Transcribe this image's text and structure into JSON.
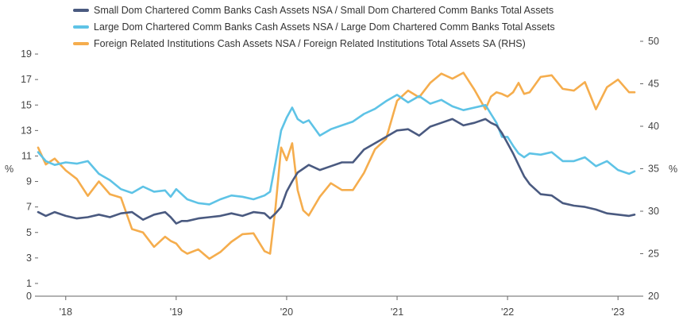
{
  "chart_data": {
    "type": "line",
    "legend": "top-left",
    "grid": false,
    "y_left": {
      "label": "%",
      "ylim": [
        0,
        20
      ],
      "ticks": [
        0,
        1,
        3,
        5,
        7,
        9,
        11,
        13,
        15,
        17,
        19
      ],
      "tick_labels": [
        "0",
        "1",
        "3",
        "5",
        "7",
        "9",
        "11",
        "13",
        "15",
        "17",
        "19"
      ]
    },
    "y_right": {
      "label": "%",
      "ylim": [
        20,
        50
      ],
      "ticks": [
        20,
        25,
        30,
        35,
        40,
        45,
        50
      ],
      "tick_labels": [
        "20",
        "25",
        "30",
        "35",
        "40",
        "45",
        "50"
      ]
    },
    "x_axis": {
      "range": [
        2017.75,
        2023.2
      ],
      "ticks": [
        2018,
        2019,
        2020,
        2021,
        2022,
        2023
      ],
      "tick_labels": [
        "'18",
        "'19",
        "'20",
        "'21",
        "'22",
        "'23"
      ]
    },
    "series": [
      {
        "name": "Small Dom Chartered Comm Banks Cash Assets NSA / Small Dom Chartered Comm Banks Total Assets",
        "axis": "left",
        "color": "#4a5a80",
        "x": [
          2017.75,
          2017.82,
          2017.9,
          2018.0,
          2018.1,
          2018.2,
          2018.3,
          2018.4,
          2018.5,
          2018.6,
          2018.7,
          2018.8,
          2018.9,
          2018.95,
          2019.0,
          2019.05,
          2019.1,
          2019.2,
          2019.3,
          2019.4,
          2019.5,
          2019.6,
          2019.7,
          2019.8,
          2019.85,
          2019.9,
          2019.95,
          2020.0,
          2020.05,
          2020.1,
          2020.15,
          2020.2,
          2020.3,
          2020.4,
          2020.5,
          2020.6,
          2020.7,
          2020.8,
          2020.9,
          2021.0,
          2021.1,
          2021.2,
          2021.3,
          2021.4,
          2021.5,
          2021.6,
          2021.7,
          2021.8,
          2021.85,
          2021.9,
          2021.95,
          2022.0,
          2022.05,
          2022.1,
          2022.15,
          2022.2,
          2022.3,
          2022.4,
          2022.5,
          2022.6,
          2022.7,
          2022.8,
          2022.9,
          2023.0,
          2023.1,
          2023.15
        ],
        "values": [
          6.6,
          6.3,
          6.6,
          6.3,
          6.1,
          6.2,
          6.4,
          6.2,
          6.5,
          6.6,
          6.0,
          6.4,
          6.6,
          6.2,
          5.7,
          5.9,
          5.9,
          6.1,
          6.2,
          6.3,
          6.5,
          6.3,
          6.6,
          6.5,
          6.1,
          6.5,
          7.0,
          8.2,
          9.0,
          9.7,
          10.0,
          10.3,
          9.9,
          10.2,
          10.5,
          10.5,
          11.5,
          12.0,
          12.5,
          13.0,
          13.1,
          12.6,
          13.3,
          13.6,
          13.9,
          13.4,
          13.6,
          13.9,
          13.6,
          13.4,
          12.8,
          12.0,
          11.2,
          10.3,
          9.4,
          8.8,
          8.0,
          7.9,
          7.3,
          7.1,
          7.0,
          6.8,
          6.5,
          6.4,
          6.3,
          6.4
        ]
      },
      {
        "name": "Large Dom Chartered Comm Banks Cash Assets NSA / Large Dom Chartered Comm Banks Total Assets",
        "axis": "left",
        "color": "#5ec3e6",
        "x": [
          2017.75,
          2017.82,
          2017.9,
          2018.0,
          2018.1,
          2018.2,
          2018.3,
          2018.4,
          2018.5,
          2018.6,
          2018.7,
          2018.8,
          2018.9,
          2018.95,
          2019.0,
          2019.05,
          2019.1,
          2019.2,
          2019.3,
          2019.4,
          2019.5,
          2019.6,
          2019.7,
          2019.8,
          2019.85,
          2019.9,
          2019.95,
          2020.0,
          2020.05,
          2020.1,
          2020.15,
          2020.2,
          2020.3,
          2020.4,
          2020.5,
          2020.6,
          2020.7,
          2020.8,
          2020.9,
          2021.0,
          2021.1,
          2021.2,
          2021.3,
          2021.4,
          2021.5,
          2021.6,
          2021.7,
          2021.8,
          2021.85,
          2021.9,
          2021.95,
          2022.0,
          2022.05,
          2022.1,
          2022.15,
          2022.2,
          2022.3,
          2022.4,
          2022.5,
          2022.6,
          2022.7,
          2022.8,
          2022.9,
          2023.0,
          2023.1,
          2023.15
        ],
        "values": [
          11.3,
          10.6,
          10.3,
          10.5,
          10.4,
          10.6,
          9.6,
          9.1,
          8.4,
          8.1,
          8.6,
          8.2,
          8.3,
          7.8,
          8.4,
          8.0,
          7.6,
          7.3,
          7.2,
          7.6,
          7.9,
          7.8,
          7.6,
          7.9,
          8.2,
          10.5,
          13.0,
          14.0,
          14.8,
          13.9,
          13.6,
          13.8,
          12.6,
          13.1,
          13.4,
          13.7,
          14.3,
          14.7,
          15.3,
          15.8,
          15.2,
          15.7,
          15.1,
          15.4,
          14.9,
          14.6,
          14.8,
          15.0,
          14.3,
          13.6,
          12.5,
          12.5,
          11.8,
          11.2,
          10.9,
          11.2,
          11.1,
          11.3,
          10.6,
          10.6,
          10.9,
          10.2,
          10.6,
          9.9,
          9.6,
          9.8
        ]
      },
      {
        "name": "Foreign Related Institutions Cash Assets NSA / Foreign Related Institutions Total Assets SA (RHS)",
        "axis": "right",
        "color": "#f5ad4d",
        "x": [
          2017.75,
          2017.82,
          2017.9,
          2018.0,
          2018.1,
          2018.2,
          2018.3,
          2018.4,
          2018.5,
          2018.6,
          2018.7,
          2018.8,
          2018.9,
          2018.95,
          2019.0,
          2019.05,
          2019.1,
          2019.2,
          2019.3,
          2019.4,
          2019.5,
          2019.6,
          2019.7,
          2019.8,
          2019.85,
          2019.9,
          2019.95,
          2020.0,
          2020.05,
          2020.1,
          2020.15,
          2020.2,
          2020.3,
          2020.4,
          2020.5,
          2020.6,
          2020.7,
          2020.8,
          2020.9,
          2021.0,
          2021.1,
          2021.2,
          2021.3,
          2021.4,
          2021.5,
          2021.6,
          2021.7,
          2021.8,
          2021.85,
          2021.9,
          2021.95,
          2022.0,
          2022.05,
          2022.1,
          2022.15,
          2022.2,
          2022.3,
          2022.4,
          2022.5,
          2022.6,
          2022.7,
          2022.8,
          2022.9,
          2023.0,
          2023.1,
          2023.15
        ],
        "values": [
          37.5,
          35.5,
          36.2,
          34.8,
          33.8,
          31.8,
          33.5,
          32.0,
          31.6,
          27.9,
          27.5,
          25.8,
          27.0,
          26.5,
          26.2,
          25.4,
          25.0,
          25.5,
          24.4,
          25.2,
          26.4,
          27.3,
          27.4,
          25.3,
          25.0,
          30.5,
          37.5,
          36.0,
          38.0,
          32.5,
          30.1,
          29.5,
          31.7,
          33.3,
          32.5,
          32.5,
          34.5,
          37.3,
          38.5,
          43.0,
          44.2,
          43.4,
          45.1,
          46.2,
          45.6,
          46.3,
          44.3,
          42.0,
          43.5,
          44.0,
          43.8,
          43.5,
          44.0,
          45.1,
          43.8,
          44.0,
          45.8,
          46.0,
          44.4,
          44.2,
          45.2,
          42.0,
          44.6,
          45.5,
          44.0,
          44.0
        ]
      }
    ]
  }
}
